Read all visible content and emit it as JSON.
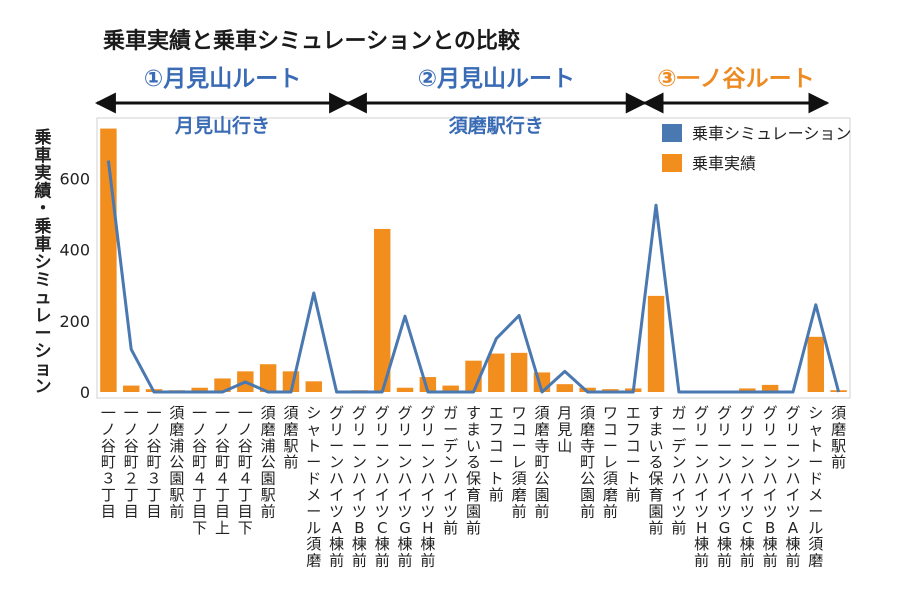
{
  "chart_data": {
    "type": "bar",
    "title": "乗車実績と乗車シミュレーションとの比較",
    "ylabel": "乗車実績・乗車シミュレーション",
    "ylim": [
      0,
      760
    ],
    "yticks": [
      0,
      200,
      400,
      600
    ],
    "grid": false,
    "legend_position": "top-right",
    "routes": [
      {
        "label": "①月見山ルート",
        "color": "#3a6bb5",
        "from": 0,
        "to": 11
      },
      {
        "label": "②月見山ルート",
        "color": "#3a6bb5",
        "from": 11,
        "to": 24
      },
      {
        "label": "③一ノ谷ルート",
        "color": "#ee8a22",
        "from": 24,
        "to": 32
      }
    ],
    "directions": [
      {
        "label": "月見山行き",
        "center": 5
      },
      {
        "label": "須磨駅行き",
        "center": 17
      }
    ],
    "categories": [
      "一ノ谷町３丁目",
      "一ノ谷町２丁目",
      "一ノ谷町３丁目",
      "須磨浦公園駅前",
      "一ノ谷町４丁目下",
      "一ノ谷町４丁目上",
      "一ノ谷町４丁目下",
      "須磨浦公園駅前",
      "須磨駅前",
      "シャトードメール須磨",
      "グリーンハイツA棟前",
      "グリーンハイツB棟前",
      "グリーンハイツC棟前",
      "グリーンハイツG棟前",
      "グリーンハイツH棟前",
      "ガーデンハイツ前",
      "すまいる保育園前",
      "エフコート前",
      "ワコーレ須磨前",
      "須磨寺町公園前",
      "月見山",
      "須磨寺町公園前",
      "ワコーレ須磨前",
      "エフコート前",
      "すまいる保育園前",
      "ガーデンハイツ前",
      "グリーンハイツH棟前",
      "グリーンハイツG棟前",
      "グリーンハイツC棟前",
      "グリーンハイツB棟前",
      "グリーンハイツA棟前",
      "シャトードメール須磨",
      "須磨駅前"
    ],
    "series": [
      {
        "name": "乗車実績",
        "type": "bar",
        "color": "#f28e1e",
        "values": [
          740,
          18,
          8,
          5,
          12,
          38,
          58,
          78,
          58,
          30,
          0,
          5,
          458,
          12,
          42,
          18,
          88,
          108,
          110,
          55,
          22,
          12,
          8,
          10,
          270,
          0,
          0,
          0,
          10,
          20,
          0,
          155,
          5
        ]
      },
      {
        "name": "乗車シミュレーション",
        "type": "line",
        "color": "#4a78b0",
        "values": [
          650,
          120,
          0,
          0,
          0,
          0,
          28,
          0,
          0,
          278,
          0,
          0,
          0,
          213,
          0,
          0,
          0,
          150,
          215,
          0,
          58,
          0,
          0,
          0,
          525,
          0,
          0,
          0,
          0,
          0,
          0,
          245,
          0
        ]
      }
    ]
  }
}
